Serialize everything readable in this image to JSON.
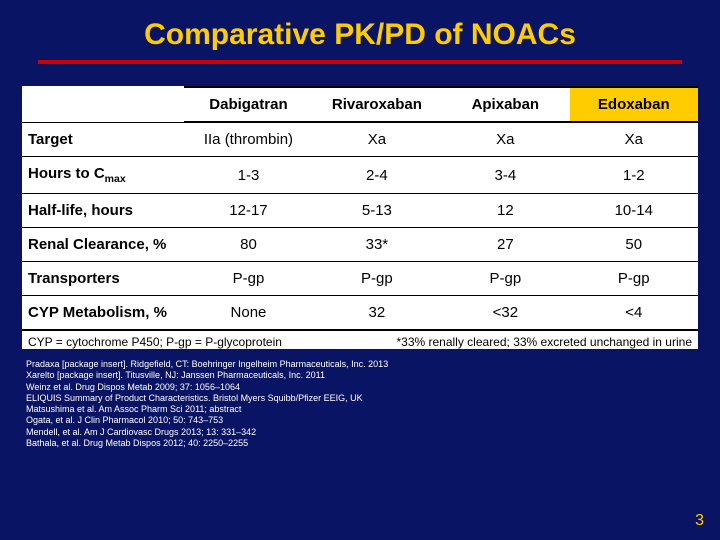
{
  "title": "Comparative PK/PD of NOACs",
  "colors": {
    "background": "#0a1464",
    "title": "#ffcc00",
    "rule": "#cc0000",
    "table_bg": "#ffffff",
    "highlight_col": "#ffcc00",
    "refs_text": "#ffffff",
    "pagenum": "#ffcc00"
  },
  "columns": [
    "Dabigatran",
    "Rivaroxaban",
    "Apixaban",
    "Edoxaban"
  ],
  "rows": [
    {
      "label": "Target",
      "cells": [
        "IIa (thrombin)",
        "Xa",
        "Xa",
        "Xa"
      ]
    },
    {
      "label": "Hours to Cmax",
      "label_sub": "max",
      "label_pre": "Hours to C",
      "cells": [
        "1-3",
        "2-4",
        "3-4",
        "1-2"
      ]
    },
    {
      "label": "Half-life, hours",
      "cells": [
        "12-17",
        "5-13",
        "12",
        "10-14"
      ]
    },
    {
      "label": "Renal Clearance, %",
      "cells": [
        "80",
        "33*",
        "27",
        "50"
      ]
    },
    {
      "label": "Transporters",
      "cells": [
        "P-gp",
        "P-gp",
        "P-gp",
        "P-gp"
      ]
    },
    {
      "label": "CYP Metabolism, %",
      "cells": [
        "None",
        "32",
        "<32",
        "<4"
      ]
    }
  ],
  "footnote_left": "CYP = cytochrome P450; P-gp = P-glycoprotein",
  "footnote_right": "*33% renally cleared; 33% excreted unchanged in urine",
  "references": [
    "Pradaxa [package insert]. Ridgefield, CT: Boehringer Ingelheim Pharmaceuticals, Inc. 2013",
    "Xarelto [package insert]. Titusville, NJ: Janssen Pharmaceuticals, Inc. 2011",
    "Weinz et al. Drug Dispos Metab 2009; 37: 1056–1064",
    "ELIQUIS Summary of Product Characteristics. Bristol Myers Squibb/Pfizer EEIG, UK",
    "Matsushima et al. Am Assoc Pharm Sci 2011; abstract",
    "Ogata, et al. J Clin Pharmacol 2010; 50: 743–753",
    "Mendell, et al. Am J Cardiovasc Drugs 2013; 13: 331–342",
    "Bathala, et al. Drug Metab Dispos 2012; 40: 2250–2255"
  ],
  "page_number": "3"
}
